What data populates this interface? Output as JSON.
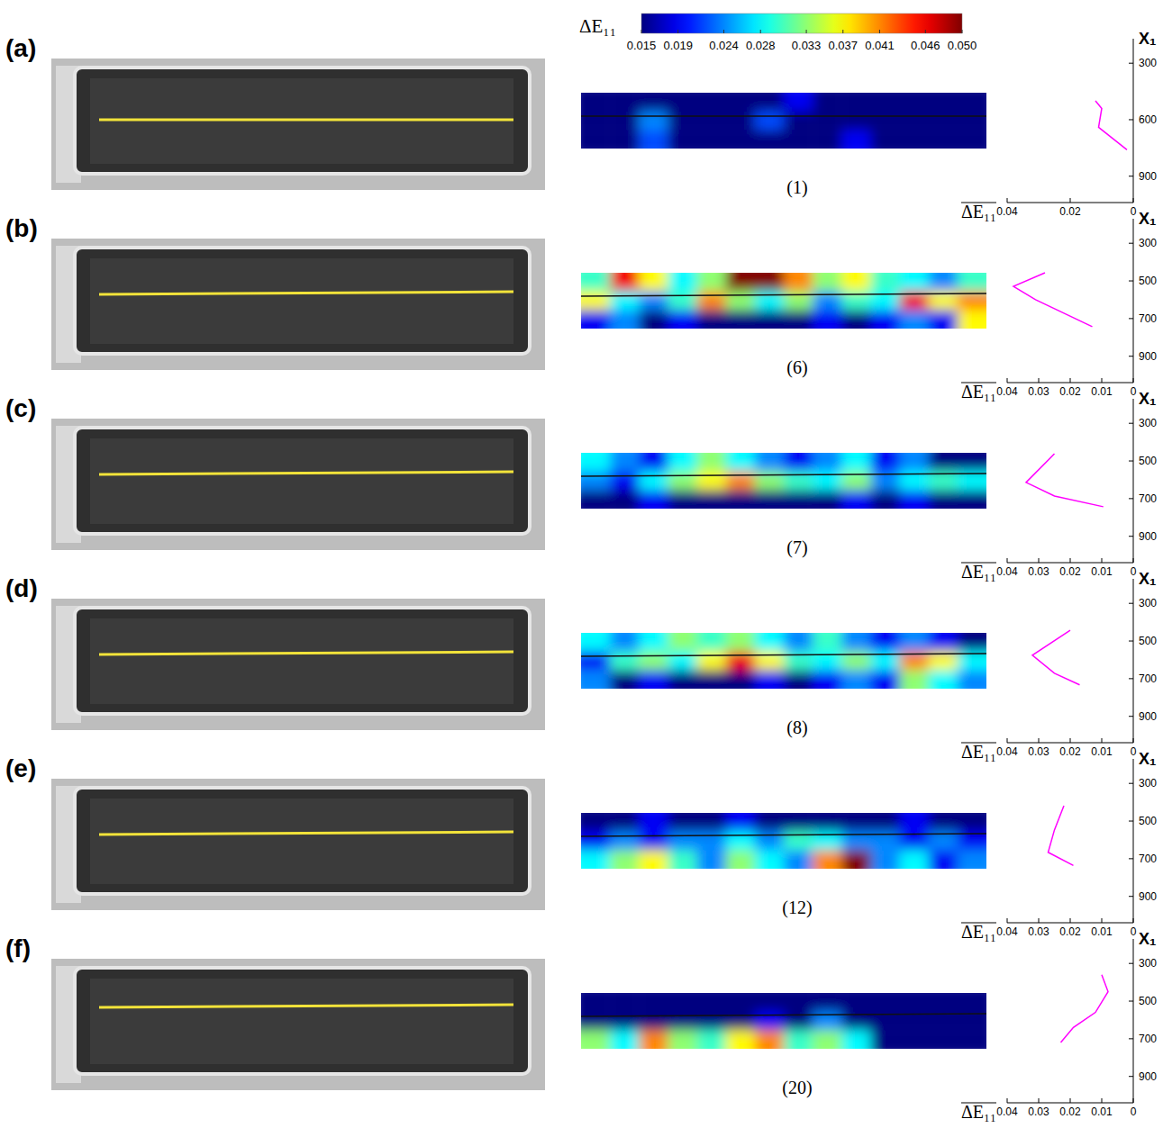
{
  "colorbar": {
    "title": "ΔE₁₁",
    "range": [
      0.015,
      0.05
    ],
    "ticks": [
      0.015,
      0.019,
      0.024,
      0.028,
      0.033,
      0.037,
      0.041,
      {
        "value": 0.046,
        "label": "0.046"
      },
      {
        "value": 0.05,
        "label": "0.050"
      }
    ]
  },
  "chart_data": [
    {
      "type": "line",
      "panel_label": "(a)",
      "subtitle": "(1)",
      "xlabel": "ΔE₁₁",
      "ylabel": "X₁",
      "color": "#ff00ff",
      "heatmap_cells": [
        [
          0.015,
          0.015,
          0.015,
          0.015,
          0.015,
          0.015,
          0.015,
          0.019,
          0.015,
          0.015,
          0.015,
          0.015,
          0.015,
          0.015
        ],
        [
          0.015,
          0.015,
          0.024,
          0.015,
          0.015,
          0.015,
          0.022,
          0.015,
          0.015,
          0.015,
          0.015,
          0.015,
          0.015,
          0.015
        ],
        [
          0.015,
          0.015,
          0.022,
          0.015,
          0.015,
          0.015,
          0.015,
          0.015,
          0.015,
          0.019,
          0.015,
          0.015,
          0.015,
          0.015
        ]
      ],
      "x": [
        0.012,
        0.01,
        0.011,
        0.002
      ],
      "values": [
        500,
        540,
        640,
        760
      ],
      "xlim": [
        0.04,
        0
      ],
      "xticks": [
        0.04,
        0.02,
        0
      ],
      "ylim": [
        170,
        1040
      ],
      "yticks": [
        300,
        600,
        900
      ]
    },
    {
      "type": "line",
      "panel_label": "(b)",
      "subtitle": "(6)",
      "xlabel": "ΔE₁₁",
      "ylabel": "X₁",
      "color": "#ff00ff",
      "heatmap_cells": [
        [
          0.03,
          0.046,
          0.037,
          0.028,
          0.033,
          0.05,
          0.05,
          0.041,
          0.033,
          0.037,
          0.03,
          0.028,
          0.024,
          0.03
        ],
        [
          0.037,
          0.028,
          0.024,
          0.03,
          0.041,
          0.033,
          0.028,
          0.033,
          0.024,
          0.03,
          0.028,
          0.046,
          0.037,
          0.041
        ],
        [
          0.019,
          0.024,
          0.015,
          0.019,
          0.015,
          0.015,
          0.015,
          0.015,
          0.019,
          0.015,
          0.019,
          0.024,
          0.019,
          0.037
        ]
      ],
      "x": [
        0.028,
        0.038,
        0.031,
        0.013
      ],
      "values": [
        457,
        529,
        600,
        743
      ],
      "xlim": [
        0.04,
        0
      ],
      "xticks": [
        0.04,
        0.03,
        0.02,
        0.01,
        0
      ],
      "ylim": [
        170,
        1040
      ],
      "yticks": [
        300,
        500,
        700,
        900
      ]
    },
    {
      "type": "line",
      "panel_label": "(c)",
      "subtitle": "(7)",
      "xlabel": "ΔE₁₁",
      "ylabel": "X₁",
      "color": "#ff00ff",
      "heatmap_cells": [
        [
          0.028,
          0.024,
          0.019,
          0.028,
          0.033,
          0.028,
          0.024,
          0.019,
          0.024,
          0.028,
          0.019,
          0.024,
          0.015,
          0.015
        ],
        [
          0.024,
          0.019,
          0.028,
          0.033,
          0.037,
          0.041,
          0.033,
          0.03,
          0.028,
          0.033,
          0.024,
          0.028,
          0.03,
          0.028
        ],
        [
          0.015,
          0.015,
          0.019,
          0.015,
          0.015,
          0.015,
          0.015,
          0.015,
          0.015,
          0.019,
          0.015,
          0.019,
          0.015,
          0.015
        ]
      ],
      "x": [
        0.025,
        0.034,
        0.025,
        0.0095
      ],
      "values": [
        462,
        614,
        686,
        743
      ],
      "xlim": [
        0.04,
        0
      ],
      "xticks": [
        0.04,
        0.03,
        0.02,
        0.01,
        0
      ],
      "ylim": [
        170,
        1040
      ],
      "yticks": [
        300,
        500,
        700,
        900
      ]
    },
    {
      "type": "line",
      "panel_label": "(d)",
      "subtitle": "(8)",
      "xlabel": "ΔE₁₁",
      "ylabel": "X₁",
      "color": "#ff00ff",
      "heatmap_cells": [
        [
          0.028,
          0.024,
          0.028,
          0.033,
          0.03,
          0.033,
          0.028,
          0.024,
          0.03,
          0.024,
          0.019,
          0.024,
          0.019,
          0.015
        ],
        [
          0.019,
          0.03,
          0.033,
          0.028,
          0.037,
          0.046,
          0.037,
          0.03,
          0.028,
          0.033,
          0.028,
          0.041,
          0.037,
          0.028
        ],
        [
          0.024,
          0.015,
          0.019,
          0.015,
          0.015,
          0.015,
          0.019,
          0.015,
          0.019,
          0.024,
          0.019,
          0.033,
          0.028,
          0.024
        ]
      ],
      "x": [
        0.02,
        0.032,
        0.025,
        0.017
      ],
      "values": [
        443,
        576,
        671,
        733
      ],
      "xlim": [
        0.04,
        0
      ],
      "xticks": [
        0.04,
        0.03,
        0.02,
        0.01,
        0
      ],
      "ylim": [
        170,
        1040
      ],
      "yticks": [
        300,
        500,
        700,
        900
      ]
    },
    {
      "type": "line",
      "panel_label": "(e)",
      "subtitle": "(12)",
      "xlabel": "ΔE₁₁",
      "ylabel": "X₁",
      "color": "#ff00ff",
      "heatmap_cells": [
        [
          0.015,
          0.015,
          0.019,
          0.015,
          0.015,
          0.019,
          0.015,
          0.015,
          0.015,
          0.015,
          0.015,
          0.019,
          0.015,
          0.015
        ],
        [
          0.019,
          0.024,
          0.019,
          0.024,
          0.024,
          0.028,
          0.024,
          0.03,
          0.028,
          0.024,
          0.024,
          0.019,
          0.024,
          0.019
        ],
        [
          0.028,
          0.033,
          0.037,
          0.03,
          0.024,
          0.033,
          0.028,
          0.024,
          0.041,
          0.05,
          0.024,
          0.028,
          0.019,
          0.024
        ]
      ],
      "x": [
        0.022,
        0.025,
        0.027,
        0.019
      ],
      "values": [
        419,
        547,
        666,
        736
      ],
      "xlim": [
        0.04,
        0
      ],
      "xticks": [
        0.04,
        0.03,
        0.02,
        0.01,
        0
      ],
      "ylim": [
        170,
        1040
      ],
      "yticks": [
        300,
        500,
        700,
        900
      ]
    },
    {
      "type": "line",
      "panel_label": "(f)",
      "subtitle": "(20)",
      "xlabel": "ΔE₁₁",
      "ylabel": "X₁",
      "color": "#ff00ff",
      "heatmap_cells": [
        [
          0.015,
          0.015,
          0.015,
          0.015,
          0.015,
          0.015,
          0.015,
          0.015,
          0.015,
          0.015,
          0.015,
          0.015,
          0.015,
          0.015
        ],
        [
          0.015,
          0.015,
          0.015,
          0.015,
          0.015,
          0.015,
          0.019,
          0.015,
          0.024,
          0.015,
          0.015,
          0.015,
          0.015,
          0.015
        ],
        [
          0.033,
          0.028,
          0.041,
          0.033,
          0.03,
          0.037,
          0.041,
          0.03,
          0.033,
          0.028,
          0.015,
          0.015,
          0.015,
          0.015
        ]
      ],
      "x": [
        0.01,
        0.008,
        0.012,
        0.019,
        0.023
      ],
      "values": [
        360,
        450,
        560,
        640,
        720
      ],
      "xlim": [
        0.04,
        0
      ],
      "xticks": [
        0.04,
        0.03,
        0.02,
        0.01,
        0
      ],
      "ylim": [
        170,
        1040
      ],
      "yticks": [
        300,
        500,
        700,
        900
      ]
    }
  ]
}
